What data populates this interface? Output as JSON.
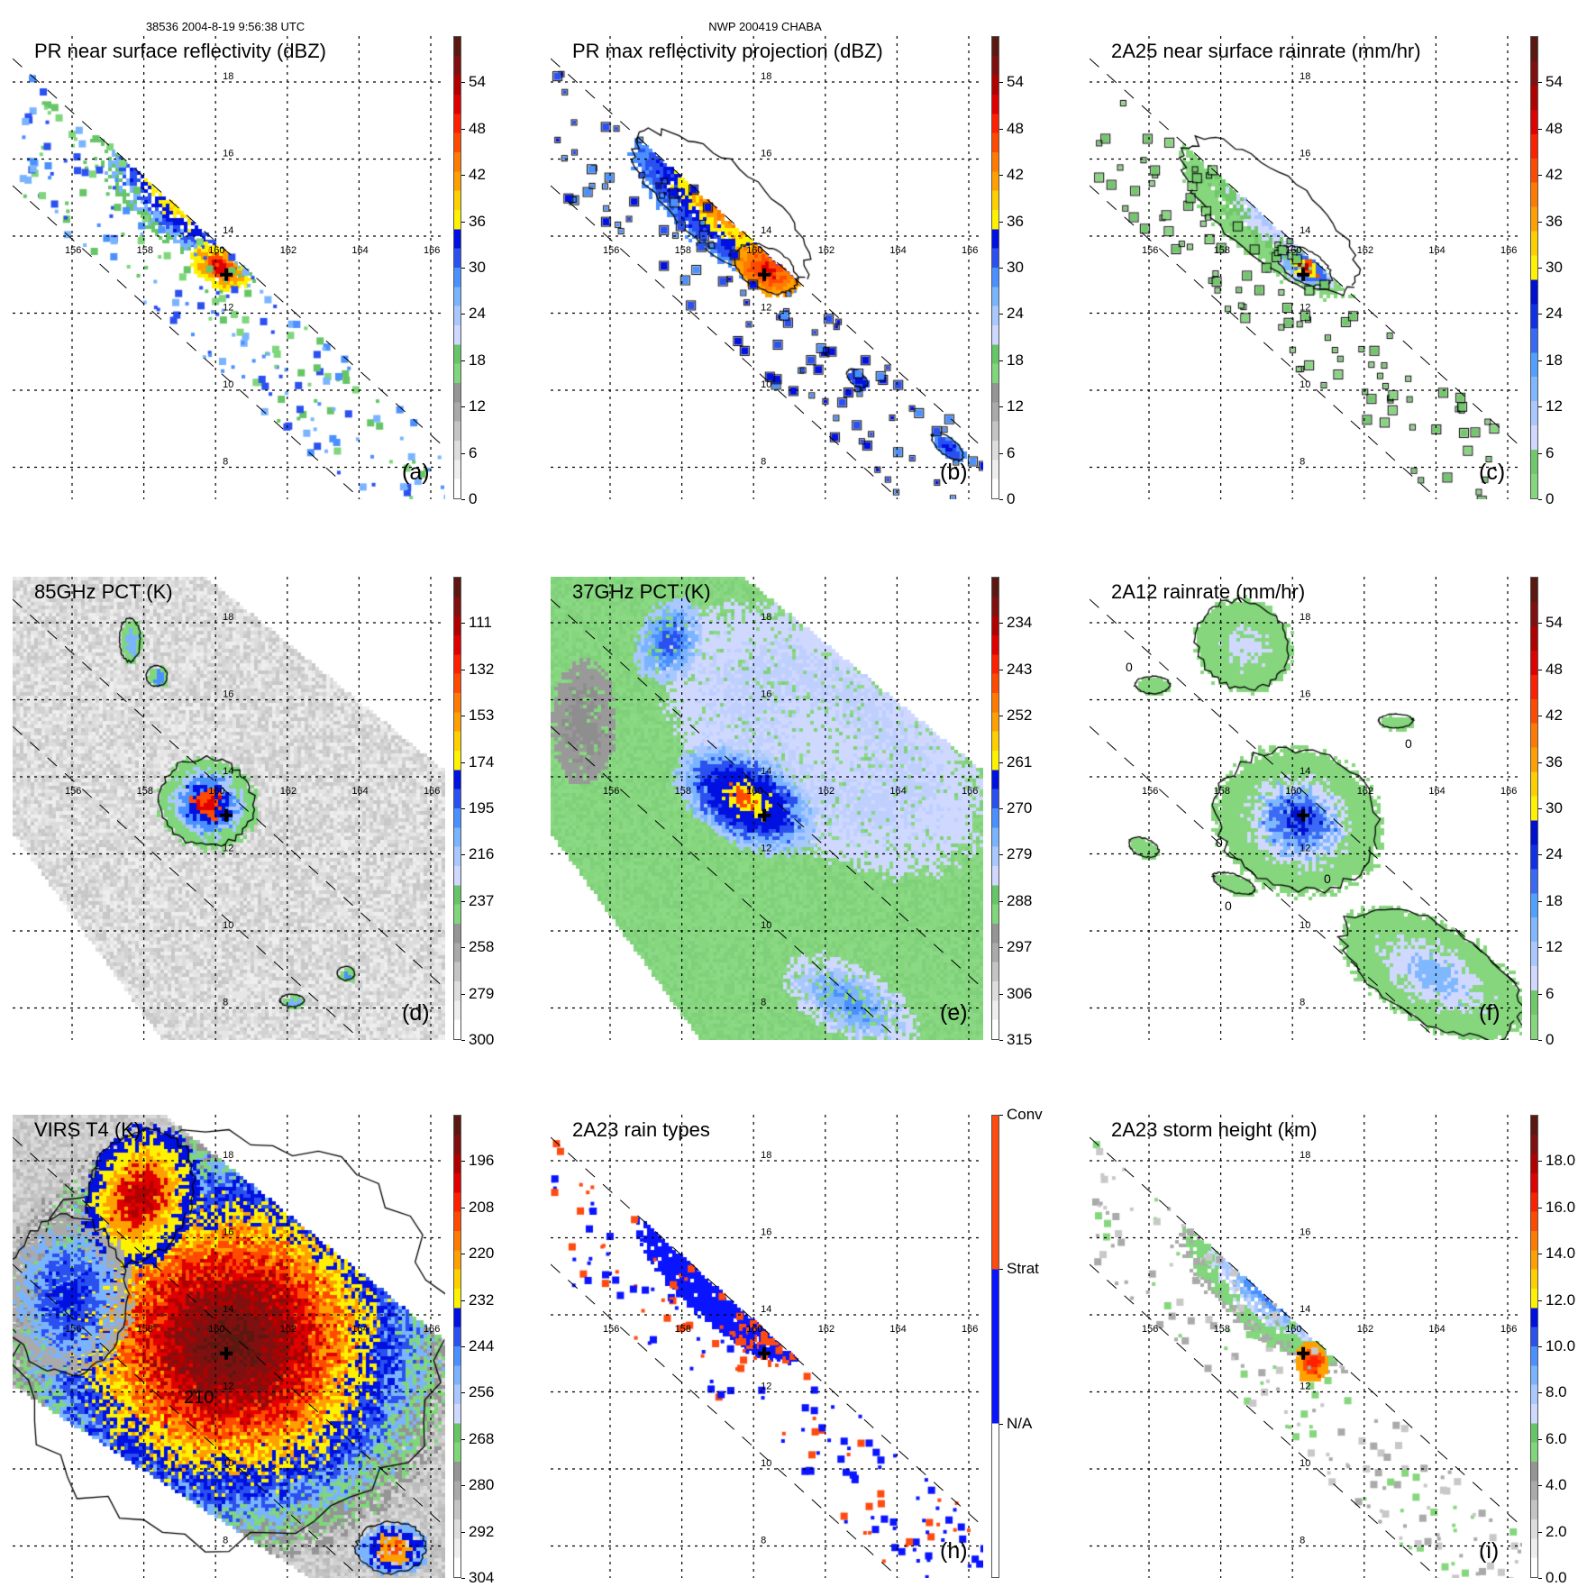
{
  "header": {
    "orbit_time": "38536 2004-8-19 9:56:38 UTC",
    "storm": "NWP 200419 CHABA"
  },
  "grid": {
    "lon_labels": [
      "156",
      "158",
      "160",
      "162",
      "164",
      "166"
    ],
    "lat_labels": [
      "18",
      "16",
      "14",
      "12",
      "10",
      "8"
    ]
  },
  "storm_center": {
    "lon": 160.3,
    "lat": 13.0
  },
  "panels": [
    {
      "id": "a",
      "title": "PR near surface reflectivity (dBZ)",
      "label": "(a)",
      "ticks": [
        "0",
        "6",
        "12",
        "18",
        "24",
        "30",
        "36",
        "42",
        "48",
        "54"
      ]
    },
    {
      "id": "b",
      "title": "PR max reflectivity projection (dBZ)",
      "label": "(b)",
      "ticks": [
        "0",
        "6",
        "12",
        "18",
        "24",
        "30",
        "36",
        "42",
        "48",
        "54"
      ]
    },
    {
      "id": "c",
      "title": "2A25 near surface rainrate (mm/hr)",
      "label": "(c)",
      "ticks": [
        "0",
        "6",
        "12",
        "18",
        "24",
        "30",
        "36",
        "42",
        "48",
        "54"
      ]
    },
    {
      "id": "d",
      "title": "85GHz PCT (K)",
      "label": "(d)",
      "ticks": [
        "300",
        "279",
        "258",
        "237",
        "216",
        "195",
        "174",
        "153",
        "132",
        "111"
      ]
    },
    {
      "id": "e",
      "title": "37GHz PCT (K)",
      "label": "(e)",
      "ticks": [
        "315",
        "306",
        "297",
        "288",
        "279",
        "270",
        "261",
        "252",
        "243",
        "234"
      ]
    },
    {
      "id": "f",
      "title": "2A12 rainrate (mm/hr)",
      "label": "(f)",
      "ticks": [
        "0",
        "6",
        "12",
        "18",
        "24",
        "30",
        "36",
        "42",
        "48",
        "54"
      ],
      "contour_label": "0"
    },
    {
      "id": "g",
      "title": "VIRS T4 (K)",
      "label": "",
      "ticks": [
        "304",
        "292",
        "280",
        "268",
        "256",
        "244",
        "232",
        "220",
        "208",
        "196"
      ],
      "contour_label": "210"
    },
    {
      "id": "h",
      "title": "2A23 rain types",
      "label": "(h)",
      "ticks": [
        "N/A",
        "Strat",
        "Conv"
      ]
    },
    {
      "id": "i",
      "title": "2A23 storm height (km)",
      "label": "(i)",
      "ticks": [
        "0.0",
        "2.0",
        "4.0",
        "6.0",
        "8.0",
        "10.0",
        "12.0",
        "14.0",
        "16.0",
        "18.0"
      ]
    }
  ],
  "colors": {
    "standard": [
      "#ffffff",
      "#eeeeee",
      "#dddddd",
      "#c4c4c4",
      "#aaaaaa",
      "#959595",
      "#7fd67b",
      "#66c566",
      "#cfd8ff",
      "#a9c8ff",
      "#7ab4ff",
      "#4a90ff",
      "#2a50f0",
      "#0010e0",
      "#fff200",
      "#ffd000",
      "#ffa000",
      "#ff7a00",
      "#ff4a00",
      "#ff2000",
      "#e00000",
      "#b00000",
      "#801010",
      "#5a1810"
    ],
    "rain": [
      "#86d67e",
      "#70c86a",
      "#d0d8ff",
      "#aac8ff",
      "#80b8ff",
      "#50a0ff",
      "#3a6af5",
      "#1030e8",
      "#0010d0",
      "#fff200",
      "#ffd000",
      "#ffa000",
      "#ff7a00",
      "#ff4a00",
      "#ff2000",
      "#e00000",
      "#b00000",
      "#801010",
      "#5a1810"
    ],
    "raintype": [
      "#ffffff",
      "#0a14ff",
      "#ff4a10"
    ]
  }
}
